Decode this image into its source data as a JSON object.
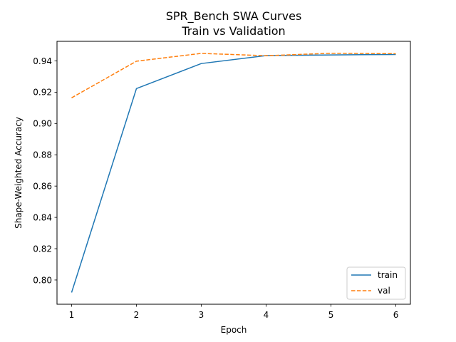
{
  "chart_data": {
    "type": "line",
    "title": "SPR_Bench SWA Curves",
    "subtitle": "Train vs Validation",
    "xlabel": "Epoch",
    "ylabel": "Shape-Weighted Accuracy",
    "x": [
      1,
      2,
      3,
      4,
      5,
      6
    ],
    "xlim": [
      0.775,
      6.225
    ],
    "ylim": [
      0.7845,
      0.9525
    ],
    "xticks": [
      1,
      2,
      3,
      4,
      5,
      6
    ],
    "yticks": [
      0.8,
      0.82,
      0.84,
      0.86,
      0.88,
      0.9,
      0.92,
      0.94
    ],
    "grid": false,
    "legend_position": "lower-right",
    "series": [
      {
        "name": "train",
        "values": [
          0.792,
          0.9223,
          0.9383,
          0.9434,
          0.9438,
          0.9441
        ],
        "color": "#1f77b4",
        "style": "solid"
      },
      {
        "name": "val",
        "values": [
          0.9164,
          0.9398,
          0.9448,
          0.9433,
          0.9449,
          0.9446
        ],
        "color": "#ff7f0e",
        "style": "dashed"
      }
    ]
  }
}
